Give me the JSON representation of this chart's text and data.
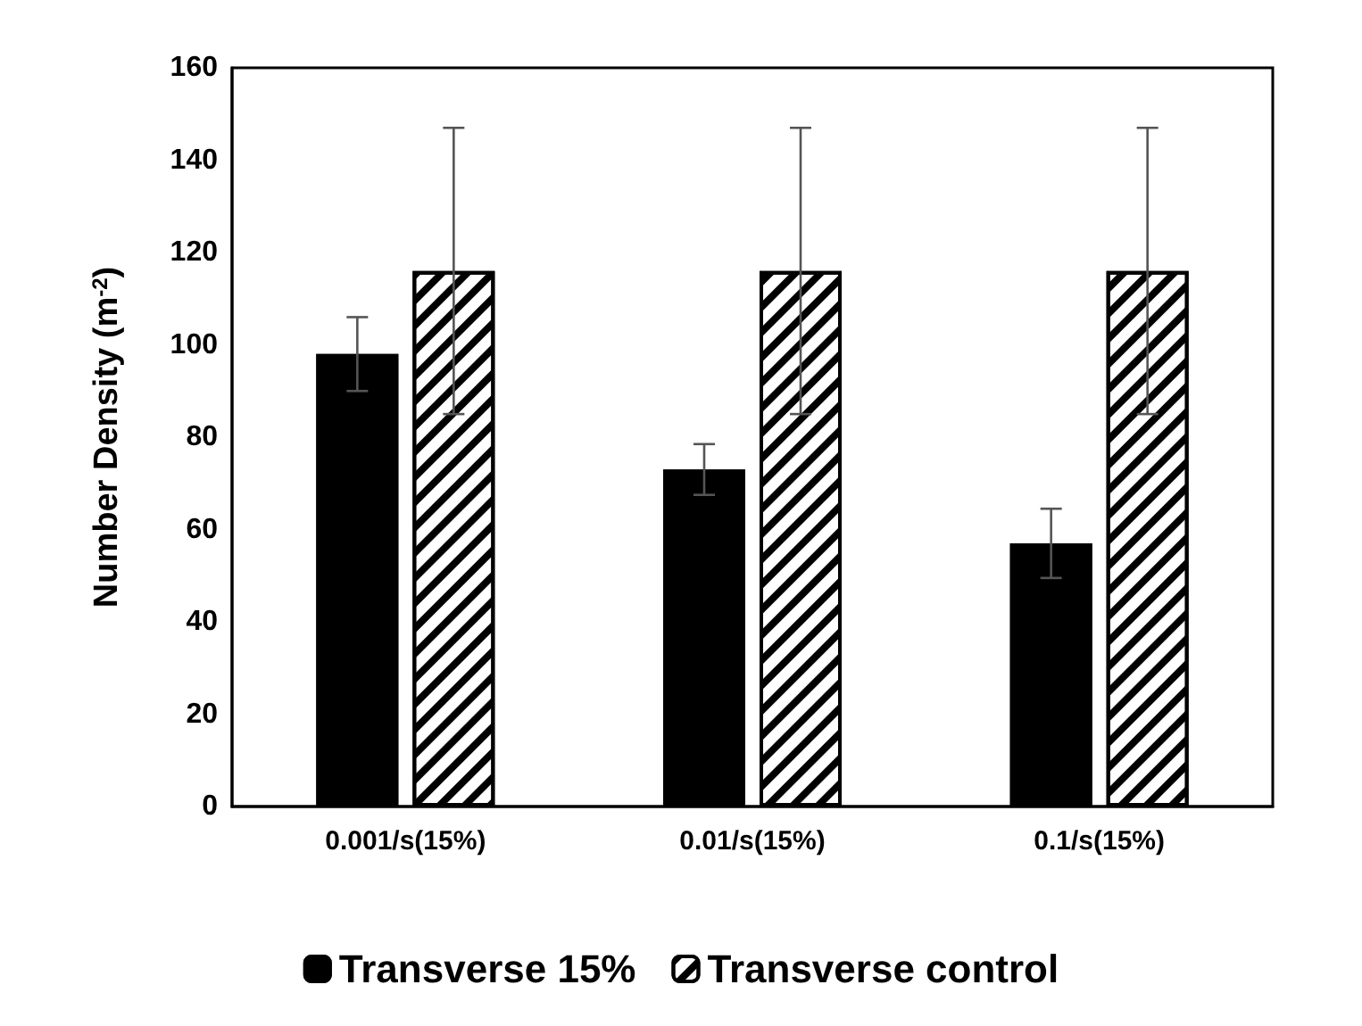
{
  "chart_data": {
    "type": "bar",
    "ylabel": "Number Density (m$^{-2}$)",
    "categories": [
      "0.001/s(15%)",
      "0.01/s(15%)",
      "0.1/s(15%)"
    ],
    "series": [
      {
        "name": "Transverse 15%",
        "color": "#000000",
        "values": [
          98,
          73,
          57
        ],
        "errors": [
          8,
          5.5,
          7.5
        ]
      },
      {
        "name": "Transverse control",
        "color": "#ffffff",
        "values": [
          116,
          116,
          116
        ],
        "errors": [
          31,
          31,
          31
        ]
      }
    ],
    "ylim": [
      0,
      160
    ],
    "yticks": [
      0,
      20,
      40,
      60,
      80,
      100,
      120,
      140,
      160
    ],
    "grid": false,
    "legend": "bottom"
  }
}
